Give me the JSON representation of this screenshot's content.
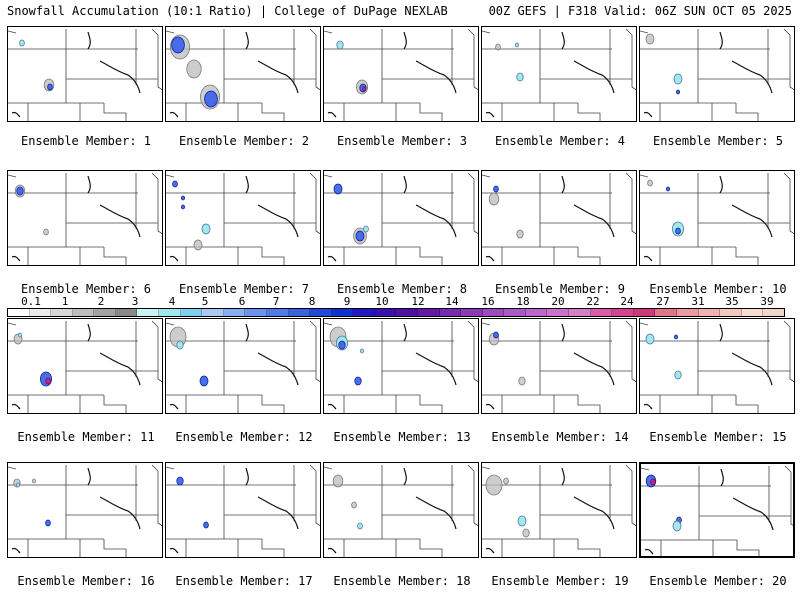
{
  "header": {
    "left": "Snowfall Accumulation (10:1 Ratio) | College of DuPage NEXLAB",
    "right": "00Z GEFS | F318 Valid: 06Z SUN OCT 05 2025"
  },
  "colorbar": {
    "ticks": [
      "0.1",
      "1",
      "2",
      "3",
      "4",
      "5",
      "6",
      "7",
      "8",
      "9",
      "10",
      "12",
      "14",
      "16",
      "18",
      "20",
      "22",
      "24",
      "27",
      "31",
      "35",
      "39"
    ],
    "colors": [
      "#ffffff",
      "#ececec",
      "#d6d6d6",
      "#bdbdbd",
      "#a3a3a3",
      "#8a8a8a",
      "#c8f4f4",
      "#9fe6ee",
      "#7fd0f0",
      "#a9c8f5",
      "#86aef2",
      "#6a92ee",
      "#4f7ae8",
      "#3762e0",
      "#2248d8",
      "#1030d0",
      "#2418c0",
      "#3a10b0",
      "#5010a8",
      "#6618a8",
      "#7a2ab0",
      "#8a3cb8",
      "#9a4cc0",
      "#aa5ac8",
      "#ba66cc",
      "#c872cc",
      "#d27ec8",
      "#dc5aaa",
      "#d44490",
      "#cc3a7c",
      "#e07488",
      "#ea9aa0",
      "#f0b4ae",
      "#f4c8bc",
      "#f8dcd0",
      "#f0d8c8"
    ]
  },
  "members": [
    {
      "label": "Ensemble Member: 1",
      "snow": [
        {
          "x": 14,
          "y": 16,
          "r": 3,
          "lvl": 1
        },
        {
          "x": 41,
          "y": 58,
          "r": 6,
          "lvl": 0
        },
        {
          "x": 42,
          "y": 60,
          "r": 3,
          "lvl": 2
        }
      ]
    },
    {
      "label": "Ensemble Member: 2",
      "snow": [
        {
          "x": 14,
          "y": 20,
          "r": 12,
          "lvl": 0
        },
        {
          "x": 12,
          "y": 18,
          "r": 8,
          "lvl": 2
        },
        {
          "x": 44,
          "y": 70,
          "r": 12,
          "lvl": 0
        },
        {
          "x": 45,
          "y": 72,
          "r": 8,
          "lvl": 2
        },
        {
          "x": 28,
          "y": 42,
          "r": 9,
          "lvl": 0
        }
      ]
    },
    {
      "label": "Ensemble Member: 3",
      "snow": [
        {
          "x": 16,
          "y": 18,
          "r": 4,
          "lvl": 1
        },
        {
          "x": 38,
          "y": 60,
          "r": 7,
          "lvl": 0
        },
        {
          "x": 39,
          "y": 61,
          "r": 4,
          "lvl": 2
        },
        {
          "x": 40,
          "y": 62,
          "r": 2,
          "lvl": 3
        }
      ]
    },
    {
      "label": "Ensemble Member: 4",
      "snow": [
        {
          "x": 35,
          "y": 18,
          "r": 2,
          "lvl": 1
        },
        {
          "x": 38,
          "y": 50,
          "r": 4,
          "lvl": 1
        },
        {
          "x": 16,
          "y": 20,
          "r": 3,
          "lvl": 0
        }
      ]
    },
    {
      "label": "Ensemble Member: 5",
      "snow": [
        {
          "x": 10,
          "y": 12,
          "r": 5,
          "lvl": 0
        },
        {
          "x": 38,
          "y": 52,
          "r": 5,
          "lvl": 1
        },
        {
          "x": 38,
          "y": 65,
          "r": 2,
          "lvl": 2
        }
      ]
    },
    {
      "label": "Ensemble Member: 6",
      "snow": [
        {
          "x": 12,
          "y": 20,
          "r": 6,
          "lvl": 0
        },
        {
          "x": 12,
          "y": 20,
          "r": 4,
          "lvl": 2
        },
        {
          "x": 38,
          "y": 61,
          "r": 3,
          "lvl": 0
        }
      ]
    },
    {
      "label": "Ensemble Member: 7",
      "snow": [
        {
          "x": 9,
          "y": 13,
          "r": 3,
          "lvl": 2
        },
        {
          "x": 17,
          "y": 27,
          "r": 2,
          "lvl": 2
        },
        {
          "x": 17,
          "y": 36,
          "r": 2,
          "lvl": 2
        },
        {
          "x": 40,
          "y": 58,
          "r": 5,
          "lvl": 1
        },
        {
          "x": 32,
          "y": 74,
          "r": 5,
          "lvl": 0
        }
      ]
    },
    {
      "label": "Ensemble Member: 8",
      "snow": [
        {
          "x": 14,
          "y": 18,
          "r": 5,
          "lvl": 2
        },
        {
          "x": 36,
          "y": 65,
          "r": 8,
          "lvl": 0
        },
        {
          "x": 36,
          "y": 65,
          "r": 5,
          "lvl": 2
        },
        {
          "x": 42,
          "y": 58,
          "r": 3,
          "lvl": 1
        }
      ]
    },
    {
      "label": "Ensemble Member: 9",
      "snow": [
        {
          "x": 14,
          "y": 18,
          "r": 3,
          "lvl": 2
        },
        {
          "x": 12,
          "y": 28,
          "r": 6,
          "lvl": 0
        },
        {
          "x": 38,
          "y": 63,
          "r": 4,
          "lvl": 0
        }
      ]
    },
    {
      "label": "Ensemble Member: 10",
      "snow": [
        {
          "x": 10,
          "y": 12,
          "r": 3,
          "lvl": 0
        },
        {
          "x": 28,
          "y": 18,
          "r": 2,
          "lvl": 2
        },
        {
          "x": 38,
          "y": 58,
          "r": 7,
          "lvl": 1
        },
        {
          "x": 38,
          "y": 60,
          "r": 3,
          "lvl": 2
        }
      ]
    },
    {
      "label": "Ensemble Member: 11",
      "snow": [
        {
          "x": 10,
          "y": 20,
          "r": 5,
          "lvl": 0
        },
        {
          "x": 12,
          "y": 16,
          "r": 2,
          "lvl": 1
        },
        {
          "x": 38,
          "y": 60,
          "r": 7,
          "lvl": 2
        },
        {
          "x": 40,
          "y": 62,
          "r": 3,
          "lvl": 3
        }
      ]
    },
    {
      "label": "Ensemble Member: 12",
      "snow": [
        {
          "x": 12,
          "y": 18,
          "r": 10,
          "lvl": 0
        },
        {
          "x": 14,
          "y": 26,
          "r": 4,
          "lvl": 1
        },
        {
          "x": 38,
          "y": 62,
          "r": 5,
          "lvl": 2
        }
      ]
    },
    {
      "label": "Ensemble Member: 13",
      "snow": [
        {
          "x": 14,
          "y": 18,
          "r": 10,
          "lvl": 0
        },
        {
          "x": 18,
          "y": 24,
          "r": 7,
          "lvl": 1
        },
        {
          "x": 18,
          "y": 26,
          "r": 4,
          "lvl": 2
        },
        {
          "x": 34,
          "y": 62,
          "r": 4,
          "lvl": 2
        },
        {
          "x": 38,
          "y": 32,
          "r": 2,
          "lvl": 1
        }
      ]
    },
    {
      "label": "Ensemble Member: 14",
      "snow": [
        {
          "x": 12,
          "y": 20,
          "r": 6,
          "lvl": 0
        },
        {
          "x": 14,
          "y": 16,
          "r": 3,
          "lvl": 2
        },
        {
          "x": 40,
          "y": 62,
          "r": 4,
          "lvl": 0
        }
      ]
    },
    {
      "label": "Ensemble Member: 15",
      "snow": [
        {
          "x": 10,
          "y": 20,
          "r": 5,
          "lvl": 1
        },
        {
          "x": 36,
          "y": 18,
          "r": 2,
          "lvl": 2
        },
        {
          "x": 38,
          "y": 56,
          "r": 4,
          "lvl": 1
        }
      ]
    },
    {
      "label": "Ensemble Member: 16",
      "snow": [
        {
          "x": 9,
          "y": 20,
          "r": 4,
          "lvl": 0
        },
        {
          "x": 10,
          "y": 22,
          "r": 2,
          "lvl": 1
        },
        {
          "x": 26,
          "y": 18,
          "r": 2,
          "lvl": 0
        },
        {
          "x": 40,
          "y": 60,
          "r": 3,
          "lvl": 2
        }
      ]
    },
    {
      "label": "Ensemble Member: 17",
      "snow": [
        {
          "x": 14,
          "y": 18,
          "r": 4,
          "lvl": 2
        },
        {
          "x": 40,
          "y": 62,
          "r": 3,
          "lvl": 2
        }
      ]
    },
    {
      "label": "Ensemble Member: 18",
      "snow": [
        {
          "x": 14,
          "y": 18,
          "r": 6,
          "lvl": 0
        },
        {
          "x": 30,
          "y": 42,
          "r": 3,
          "lvl": 0
        },
        {
          "x": 36,
          "y": 63,
          "r": 3,
          "lvl": 1
        }
      ]
    },
    {
      "label": "Ensemble Member: 19",
      "snow": [
        {
          "x": 12,
          "y": 22,
          "r": 10,
          "lvl": 0
        },
        {
          "x": 24,
          "y": 18,
          "r": 3,
          "lvl": 0
        },
        {
          "x": 40,
          "y": 58,
          "r": 5,
          "lvl": 1
        },
        {
          "x": 44,
          "y": 70,
          "r": 4,
          "lvl": 0
        }
      ]
    },
    {
      "label": "Ensemble Member: 20",
      "snow": [
        {
          "x": 10,
          "y": 17,
          "r": 6,
          "lvl": 2
        },
        {
          "x": 12,
          "y": 18,
          "r": 3,
          "lvl": 3
        },
        {
          "x": 38,
          "y": 56,
          "r": 3,
          "lvl": 2
        },
        {
          "x": 36,
          "y": 62,
          "r": 5,
          "lvl": 1
        }
      ]
    }
  ]
}
